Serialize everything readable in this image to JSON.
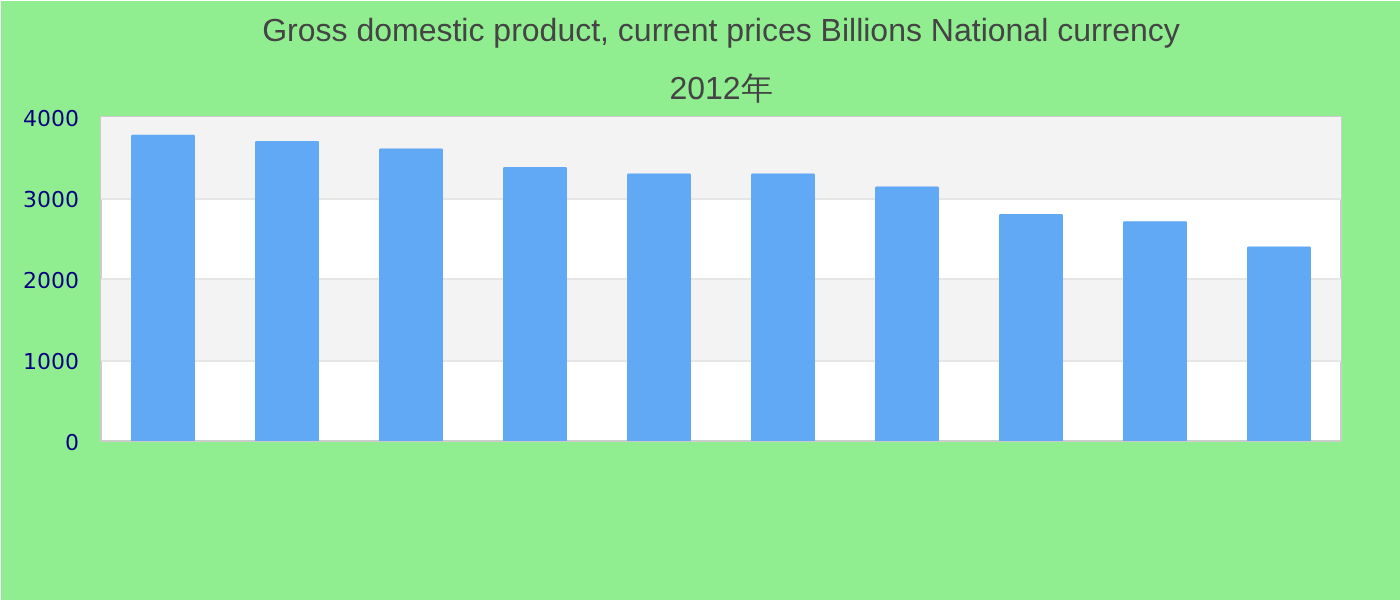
{
  "chart_data": {
    "type": "bar",
    "title": "Gross domestic product, current prices Billions National currency",
    "subtitle": "2012年",
    "categories": [
      null,
      null,
      null,
      null,
      null,
      null,
      null,
      null,
      null,
      null
    ],
    "values": [
      3770,
      3690,
      3600,
      3370,
      3290,
      3290,
      3130,
      2790,
      2700,
      2390
    ],
    "color": "#61a8f5",
    "ylim": [
      0,
      4000
    ],
    "yticks": [
      0,
      1000,
      2000,
      3000,
      4000
    ],
    "grid": "y"
  }
}
